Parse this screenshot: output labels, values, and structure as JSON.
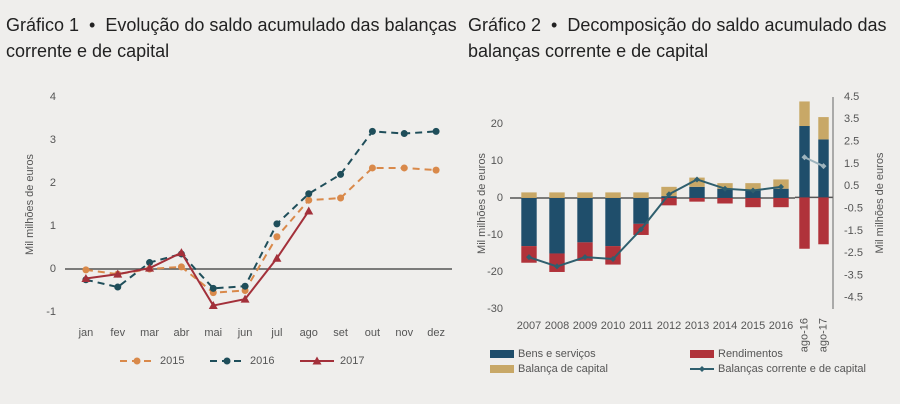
{
  "chart_data": [
    {
      "type": "line",
      "label": "Gráfico 1",
      "title": "Evolução do saldo acumulado das balanças corrente e de capital",
      "ylabel": "Mil milhões de euros",
      "categories": [
        "jan",
        "fev",
        "mar",
        "abr",
        "mai",
        "jun",
        "jul",
        "ago",
        "set",
        "out",
        "nov",
        "dez"
      ],
      "ylim": [
        -1,
        4
      ],
      "yticks": [
        -1,
        0,
        1,
        2,
        3,
        4
      ],
      "series": [
        {
          "name": "2015",
          "color": "#d9894a",
          "dash": true,
          "marker": "circle",
          "values": [
            -0.02,
            -0.12,
            0.0,
            0.05,
            -0.55,
            -0.5,
            0.75,
            1.6,
            1.65,
            2.35,
            2.35,
            2.3
          ]
        },
        {
          "name": "2016",
          "color": "#1f4e5a",
          "dash": true,
          "marker": "circle",
          "values": [
            -0.25,
            -0.42,
            0.15,
            0.35,
            -0.45,
            -0.4,
            1.05,
            1.75,
            2.2,
            3.2,
            3.15,
            3.2
          ]
        },
        {
          "name": "2017",
          "color": "#a3303a",
          "dash": false,
          "marker": "triangle",
          "values": [
            -0.22,
            -0.12,
            0.02,
            0.38,
            -0.85,
            -0.7,
            0.25,
            1.35,
            null,
            null,
            null,
            null
          ]
        }
      ]
    },
    {
      "type": "bar",
      "label": "Gráfico 2",
      "title": "Decomposição do saldo acumulado das balanças corrente e de capital",
      "ylabel": "Mil milhões de euros",
      "stacked": true,
      "categories": [
        "2007",
        "2008",
        "2009",
        "2010",
        "2011",
        "2012",
        "2013",
        "2014",
        "2015",
        "2016"
      ],
      "ylim": [
        -30,
        27
      ],
      "yticks": [
        -30,
        -20,
        -10,
        0,
        10,
        20
      ],
      "series": [
        {
          "name": "Bens e serviços",
          "color": "#1f4e6b",
          "values": [
            -13,
            -15,
            -12,
            -13,
            -7,
            0.5,
            3,
            2.5,
            2,
            2.5
          ]
        },
        {
          "name": "Rendimentos",
          "color": "#b0323a",
          "values": [
            -4.5,
            -5,
            -5,
            -5,
            -3,
            -2,
            -1,
            -1.5,
            -2.5,
            -2.5
          ]
        },
        {
          "name": "Balança de capital",
          "color": "#c8a867",
          "values": [
            1.5,
            1.5,
            1.5,
            1.5,
            1.5,
            2.5,
            2.5,
            1.5,
            2,
            2.5
          ]
        },
        {
          "name": "Balanças corrente e de capital",
          "type": "line",
          "color": "#2f5f6e",
          "values": [
            -16,
            -18.5,
            -16,
            -16.5,
            -8.5,
            1,
            5,
            2.5,
            2,
            3
          ]
        }
      ]
    },
    {
      "type": "bar",
      "ylabel": "Mil milhões de euros",
      "stacked": true,
      "categories": [
        "ago-16",
        "ago-17"
      ],
      "ylim": [
        -5,
        4.5
      ],
      "yticks": [
        4.5,
        3.5,
        2.5,
        1.5,
        0.5,
        -0.5,
        -1.5,
        -2.5,
        -3.5,
        -4.5
      ],
      "series": [
        {
          "color": "#1f4e6b",
          "values": [
            3.2,
            2.6
          ]
        },
        {
          "color": "#b0323a",
          "values": [
            -2.3,
            -2.1
          ]
        },
        {
          "color": "#c8a867",
          "values": [
            1.1,
            1.0
          ]
        },
        {
          "type": "line",
          "color": "#9fb4bd",
          "values": [
            1.8,
            1.4
          ]
        }
      ]
    }
  ]
}
